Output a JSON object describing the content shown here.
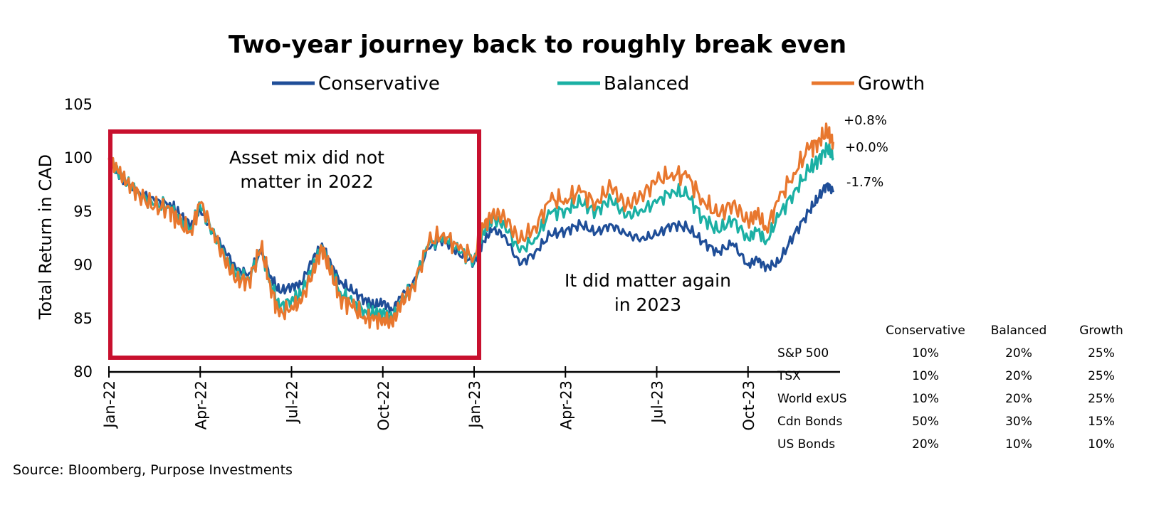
{
  "chart_data": {
    "type": "line",
    "title": "Two-year journey back to roughly break even",
    "ylabel": "Total Return in CAD",
    "xlabel": "",
    "ylim": [
      80,
      105
    ],
    "yticks": [
      80,
      85,
      90,
      95,
      100,
      105
    ],
    "x_range": [
      0,
      24
    ],
    "x_tick_positions": [
      0,
      3,
      6,
      9,
      12,
      15,
      18,
      21
    ],
    "x_tick_labels": [
      "Jan-22",
      "Apr-22",
      "Jul-22",
      "Oct-22",
      "Jan-23",
      "Apr-23",
      "Jul-23",
      "Oct-23"
    ],
    "legend": [
      "Conservative",
      "Balanced",
      "Growth"
    ],
    "legend_position": "top",
    "colors": {
      "Conservative": "#1F4E98",
      "Balanced": "#1BB0A4",
      "Growth": "#E8772E",
      "box": "#C8102E",
      "axis": "#000000"
    },
    "series": [
      {
        "name": "Conservative",
        "color": "#1F4E98",
        "x": [
          0,
          0.3,
          0.6,
          1.0,
          1.5,
          2.0,
          2.3,
          2.7,
          3.0,
          3.4,
          3.8,
          4.2,
          4.6,
          5.0,
          5.3,
          5.6,
          6.0,
          6.3,
          6.7,
          7.0,
          7.3,
          7.6,
          8.0,
          8.4,
          8.7,
          9.0,
          9.3,
          9.6,
          10.0,
          10.5,
          11.0,
          11.5,
          12.0,
          12.3,
          12.6,
          13.0,
          13.5,
          14.0,
          14.5,
          15.0,
          15.5,
          16.0,
          16.5,
          17.0,
          17.5,
          18.0,
          18.5,
          19.0,
          19.5,
          20.0,
          20.5,
          21.0,
          21.3,
          21.6,
          22.0,
          22.5,
          23.0,
          23.3,
          23.6,
          23.8
        ],
        "y": [
          100,
          98.5,
          97.5,
          96.8,
          96.0,
          95.8,
          94.8,
          93.8,
          95.2,
          93.0,
          91.5,
          89.5,
          89.2,
          91.2,
          89.0,
          87.5,
          88.0,
          88.2,
          90.5,
          92.0,
          90.0,
          88.5,
          87.5,
          86.8,
          86.2,
          86.5,
          85.8,
          87.0,
          88.5,
          91.5,
          92.5,
          91.0,
          90.2,
          92.2,
          93.3,
          92.8,
          90.0,
          91.2,
          92.8,
          93.2,
          93.8,
          93.0,
          93.8,
          92.8,
          92.5,
          92.8,
          93.8,
          93.5,
          92.2,
          91.2,
          92.0,
          90.0,
          90.5,
          89.8,
          90.2,
          92.8,
          95.0,
          96.2,
          97.6,
          96.8
        ]
      },
      {
        "name": "Balanced",
        "color": "#1BB0A4",
        "x": [
          0,
          0.3,
          0.6,
          1.0,
          1.5,
          2.0,
          2.3,
          2.7,
          3.0,
          3.4,
          3.8,
          4.2,
          4.6,
          5.0,
          5.3,
          5.6,
          6.0,
          6.3,
          6.7,
          7.0,
          7.3,
          7.6,
          8.0,
          8.4,
          8.7,
          9.0,
          9.3,
          9.6,
          10.0,
          10.5,
          11.0,
          11.5,
          12.0,
          12.3,
          12.6,
          13.0,
          13.5,
          14.0,
          14.5,
          15.0,
          15.5,
          16.0,
          16.5,
          17.0,
          17.5,
          18.0,
          18.5,
          19.0,
          19.5,
          20.0,
          20.5,
          21.0,
          21.3,
          21.6,
          22.0,
          22.5,
          23.0,
          23.3,
          23.6,
          23.8
        ],
        "y": [
          100,
          98.6,
          97.7,
          96.6,
          95.6,
          95.5,
          94.2,
          93.5,
          95.5,
          93.2,
          90.8,
          89.0,
          88.8,
          91.4,
          88.5,
          86.0,
          86.8,
          87.2,
          89.8,
          91.8,
          89.5,
          87.5,
          86.5,
          85.8,
          85.4,
          85.6,
          85.0,
          86.6,
          88.2,
          91.8,
          92.8,
          91.2,
          90.6,
          93.0,
          94.3,
          93.8,
          91.2,
          92.5,
          94.8,
          95.2,
          95.8,
          95.0,
          96.2,
          94.5,
          95.2,
          95.8,
          97.0,
          96.5,
          94.5,
          93.2,
          94.2,
          92.5,
          93.2,
          92.2,
          94.5,
          96.8,
          98.8,
          99.8,
          101.0,
          100.0
        ]
      },
      {
        "name": "Growth",
        "color": "#E8772E",
        "x": [
          0,
          0.3,
          0.6,
          1.0,
          1.5,
          2.0,
          2.3,
          2.7,
          3.0,
          3.4,
          3.8,
          4.2,
          4.6,
          5.0,
          5.3,
          5.6,
          6.0,
          6.3,
          6.7,
          7.0,
          7.3,
          7.6,
          8.0,
          8.4,
          8.7,
          9.0,
          9.3,
          9.6,
          10.0,
          10.5,
          11.0,
          11.5,
          12.0,
          12.3,
          12.6,
          13.0,
          13.5,
          14.0,
          14.5,
          15.0,
          15.5,
          16.0,
          16.5,
          17.0,
          17.5,
          18.0,
          18.5,
          19.0,
          19.5,
          20.0,
          20.5,
          21.0,
          21.3,
          21.6,
          22.0,
          22.5,
          23.0,
          23.3,
          23.6,
          23.8
        ],
        "y": [
          100,
          98.7,
          97.8,
          96.5,
          95.4,
          95.3,
          93.8,
          93.2,
          95.8,
          93.4,
          90.4,
          88.6,
          88.5,
          91.6,
          88.2,
          85.2,
          86.2,
          86.4,
          89.4,
          91.6,
          89.2,
          87.0,
          86.0,
          85.2,
          84.8,
          85.0,
          84.5,
          86.4,
          88.0,
          92.0,
          93.0,
          91.4,
          90.8,
          93.5,
          94.8,
          94.5,
          92.2,
          93.6,
          96.0,
          96.2,
          96.8,
          95.8,
          97.3,
          95.5,
          96.6,
          97.8,
          98.6,
          98.2,
          96.2,
          94.6,
          95.8,
          94.0,
          94.8,
          93.4,
          96.0,
          98.6,
          100.8,
          101.6,
          102.4,
          101.5
        ]
      }
    ],
    "end_labels": [
      "+0.8%",
      "+0.0%",
      "-1.7%"
    ],
    "annotations": [
      "Asset mix did not",
      "matter in 2022",
      "It did matter again",
      "in 2023"
    ]
  },
  "allocation_table": {
    "columns": [
      "Conservative",
      "Balanced",
      "Growth"
    ],
    "rows": [
      {
        "label": "S&P 500",
        "values": [
          "10%",
          "20%",
          "25%"
        ]
      },
      {
        "label": "TSX",
        "values": [
          "10%",
          "20%",
          "25%"
        ]
      },
      {
        "label": "World exUS",
        "values": [
          "10%",
          "20%",
          "25%"
        ]
      },
      {
        "label": "Cdn Bonds",
        "values": [
          "50%",
          "30%",
          "15%"
        ]
      },
      {
        "label": "US Bonds",
        "values": [
          "20%",
          "10%",
          "10%"
        ]
      }
    ]
  },
  "source": "Source: Bloomberg, Purpose Investments"
}
